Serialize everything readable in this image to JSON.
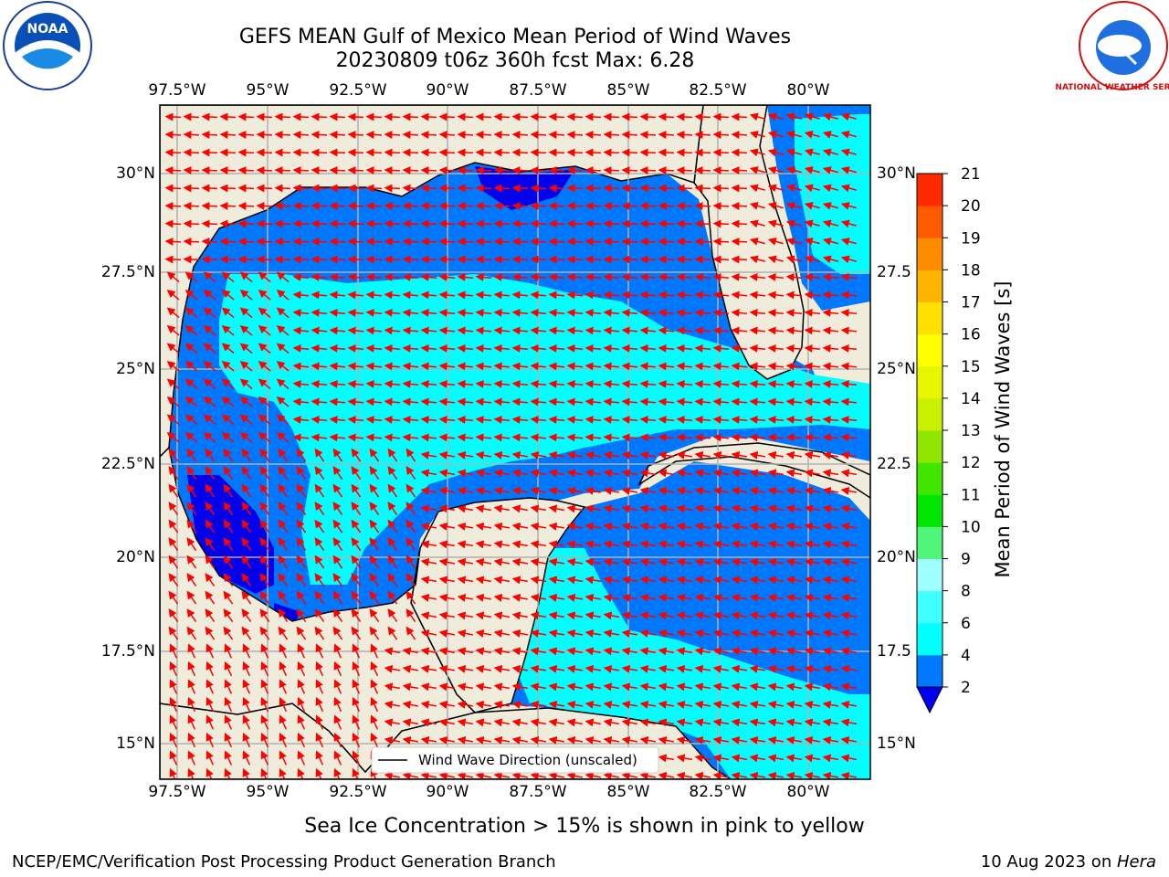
{
  "header": {
    "title_line1": "GEFS MEAN Gulf of Mexico Mean Period of Wind Waves",
    "title_line2": "20230809 t06z 360h fcst   Max: 6.28",
    "left_logo": "NOAA",
    "right_logo": "NATIONAL WEATHER SERVICE"
  },
  "map": {
    "lon_ticks_top": [
      "97.5°W",
      "95°W",
      "92.5°W",
      "90°W",
      "87.5°W",
      "85°W",
      "82.5°W",
      "80°W"
    ],
    "lon_ticks_bottom": [
      "97.5°W",
      "95°W",
      "92.5°W",
      "90°W",
      "87.5°W",
      "85°W",
      "82.5°W",
      "80°W"
    ],
    "lat_ticks_left": [
      "30°N",
      "27.5°N",
      "25°N",
      "22.5°N",
      "20°N",
      "17.5°N",
      "15°N"
    ],
    "lat_ticks_right": [
      "30°N",
      "27.5",
      "25°N",
      "22.5",
      "20°N",
      "17.5",
      "15°N"
    ],
    "legend_label": "Wind Wave Direction (unscaled)",
    "colors": {
      "land": "#efecdc",
      "ocean_low": "#0000ee",
      "ocean_2_4": "#0077ff",
      "ocean_4_6": "#00ffff",
      "arrow": "#ff0000",
      "grid": "#b0b0b0"
    }
  },
  "colorbar": {
    "label": "Mean Period of Wind Waves [s]",
    "ticks": [
      "2",
      "4",
      "6",
      "8",
      "9",
      "10",
      "11",
      "12",
      "13",
      "14",
      "15",
      "16",
      "17",
      "18",
      "19",
      "20",
      "21"
    ],
    "colors": [
      "#0077ff",
      "#00ffff",
      "#40ffff",
      "#a0ffff",
      "#50f57a",
      "#00e600",
      "#40e600",
      "#90e600",
      "#c8f000",
      "#e8f500",
      "#ffff00",
      "#ffe000",
      "#ffb400",
      "#ff8c00",
      "#ff5a00",
      "#ff2a00",
      "#ff0000"
    ],
    "under_color": "#0000ee"
  },
  "annotation": "Sea Ice Concentration > 15% is shown in pink to yellow",
  "footer": {
    "left": "NCEP/EMC/Verification Post Processing Product Generation Branch",
    "right_date": "10 Aug 2023 on ",
    "right_machine": "Hera"
  }
}
